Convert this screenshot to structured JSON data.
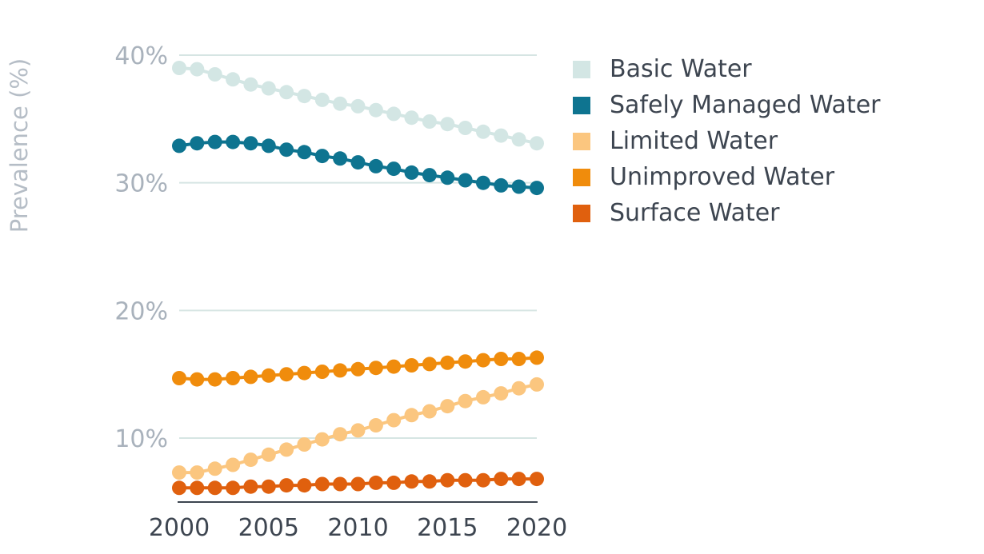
{
  "chart_data": {
    "type": "line",
    "ylabel": "Prevalence (%)",
    "ylim": [
      5,
      40
    ],
    "xlim": [
      2000,
      2020
    ],
    "grid": true,
    "legend_position": "right",
    "yticks": [
      {
        "value": 10,
        "label": "10%"
      },
      {
        "value": 20,
        "label": "20%"
      },
      {
        "value": 30,
        "label": "30%"
      },
      {
        "value": 40,
        "label": "40%"
      }
    ],
    "xticks": [
      {
        "value": 2000,
        "label": "2000"
      },
      {
        "value": 2005,
        "label": "2005"
      },
      {
        "value": 2010,
        "label": "2010"
      },
      {
        "value": 2015,
        "label": "2015"
      },
      {
        "value": 2020,
        "label": "2020"
      }
    ],
    "x": [
      2000,
      2001,
      2002,
      2003,
      2004,
      2005,
      2006,
      2007,
      2008,
      2009,
      2010,
      2011,
      2012,
      2013,
      2014,
      2015,
      2016,
      2017,
      2018,
      2019,
      2020
    ],
    "series": [
      {
        "name": "Basic Water",
        "color": "#d3e6e4",
        "values": [
          39.0,
          38.9,
          38.5,
          38.1,
          37.7,
          37.4,
          37.1,
          36.8,
          36.5,
          36.2,
          36.0,
          35.7,
          35.4,
          35.1,
          34.8,
          34.6,
          34.3,
          34.0,
          33.7,
          33.4,
          33.1
        ]
      },
      {
        "name": "Safely Managed Water",
        "color": "#0e7490",
        "values": [
          32.9,
          33.1,
          33.2,
          33.2,
          33.1,
          32.9,
          32.6,
          32.4,
          32.1,
          31.9,
          31.6,
          31.3,
          31.1,
          30.8,
          30.6,
          30.4,
          30.2,
          30.0,
          29.8,
          29.7,
          29.6
        ]
      },
      {
        "name": "Limited Water",
        "color": "#fbc67f",
        "values": [
          7.3,
          7.3,
          7.6,
          7.9,
          8.3,
          8.7,
          9.1,
          9.5,
          9.9,
          10.3,
          10.6,
          11.0,
          11.4,
          11.8,
          12.1,
          12.5,
          12.9,
          13.2,
          13.5,
          13.9,
          14.2
        ]
      },
      {
        "name": "Unimproved Water",
        "color": "#f08c0c",
        "values": [
          14.7,
          14.6,
          14.6,
          14.7,
          14.8,
          14.9,
          15.0,
          15.1,
          15.2,
          15.3,
          15.4,
          15.5,
          15.6,
          15.7,
          15.8,
          15.9,
          16.0,
          16.1,
          16.2,
          16.2,
          16.3
        ]
      },
      {
        "name": "Surface Water",
        "color": "#e0600e",
        "values": [
          6.1,
          6.1,
          6.1,
          6.1,
          6.2,
          6.2,
          6.3,
          6.3,
          6.4,
          6.4,
          6.4,
          6.5,
          6.5,
          6.6,
          6.6,
          6.7,
          6.7,
          6.7,
          6.8,
          6.8,
          6.8
        ]
      }
    ]
  }
}
